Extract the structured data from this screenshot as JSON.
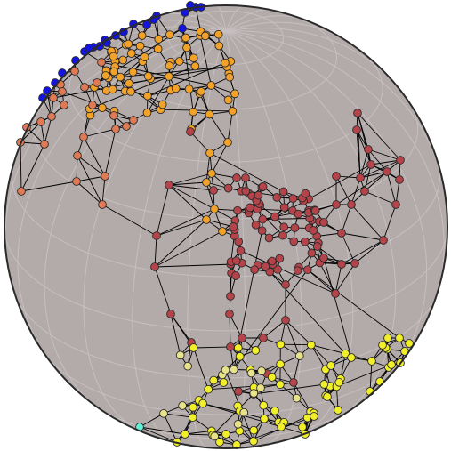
{
  "colors": {
    "globe_fill": "#b3aaaa",
    "globe_outline": "#2a2a2a",
    "graticule": "#c7c0c0",
    "edge": "#000000",
    "node_outline": "#2a2a2a"
  },
  "clusters": [
    {
      "name": "blue",
      "color": "#1414e0"
    },
    {
      "name": "orange",
      "color": "#f2a129"
    },
    {
      "name": "salmon",
      "color": "#e07a55"
    },
    {
      "name": "dark-red",
      "color": "#b5434a"
    },
    {
      "name": "yellow",
      "color": "#f1ee2a"
    },
    {
      "name": "pale-yellow",
      "color": "#e8e28a"
    },
    {
      "name": "cyan",
      "color": "#5ef2d6"
    }
  ],
  "graph": {
    "node_count": 262,
    "edge_count": 612
  }
}
